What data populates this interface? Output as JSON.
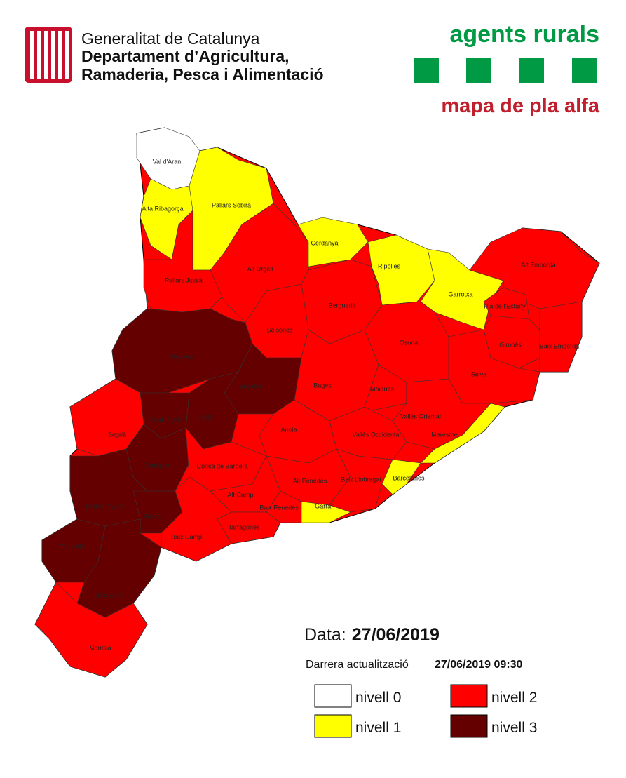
{
  "header": {
    "org_line1": "Generalitat de Catalunya",
    "org_line2": "Departament d’Agricultura,",
    "org_line3": "Ramaderia, Pesca i Alimentació",
    "brand": "agents rurals",
    "subtitle": "mapa de pla alfa"
  },
  "date": {
    "label": "Data:",
    "value": "27/06/2019"
  },
  "update": {
    "label": "Darrera actualització",
    "value": "27/06/2019 09:30"
  },
  "legend": [
    {
      "label": "nivell 0",
      "color": "#ffffff"
    },
    {
      "label": "nivell 1",
      "color": "#ffff00"
    },
    {
      "label": "nivell 2",
      "color": "#ff0000"
    },
    {
      "label": "nivell 3",
      "color": "#650000"
    }
  ],
  "regions": [
    {
      "name": "Val d'Aran",
      "level": 0
    },
    {
      "name": "Pallars Sobirà",
      "level": 1
    },
    {
      "name": "Alta Ribagorça",
      "level": 1
    },
    {
      "name": "Pallars Jussà",
      "level": 2
    },
    {
      "name": "Alt Urgell",
      "level": 2
    },
    {
      "name": "Cerdanya",
      "level": 1
    },
    {
      "name": "Ripollès",
      "level": 1
    },
    {
      "name": "Garrotxa",
      "level": 1
    },
    {
      "name": "Alt Empordà",
      "level": 2
    },
    {
      "name": "Pla de l'Estany",
      "level": 2
    },
    {
      "name": "Gironès",
      "level": 2
    },
    {
      "name": "Baix Empordà",
      "level": 2
    },
    {
      "name": "Selva",
      "level": 2
    },
    {
      "name": "Berguedà",
      "level": 2
    },
    {
      "name": "Solsonès",
      "level": 2
    },
    {
      "name": "Osona",
      "level": 2
    },
    {
      "name": "Noguera",
      "level": 3
    },
    {
      "name": "Segarra",
      "level": 3
    },
    {
      "name": "Bages",
      "level": 2
    },
    {
      "name": "Moianès",
      "level": 2
    },
    {
      "name": "Urgell",
      "level": 3
    },
    {
      "name": "Pla d'Urgell",
      "level": 3
    },
    {
      "name": "Segrià",
      "level": 2
    },
    {
      "name": "Vallès Oriental",
      "level": 2
    },
    {
      "name": "Anoia",
      "level": 2
    },
    {
      "name": "Vallès Occidental",
      "level": 2
    },
    {
      "name": "Maresme",
      "level": 1
    },
    {
      "name": "Garrigues",
      "level": 3
    },
    {
      "name": "Conca de Barberà",
      "level": 2
    },
    {
      "name": "Alt Penedès",
      "level": 2
    },
    {
      "name": "Baix Llobregat",
      "level": 2
    },
    {
      "name": "Barcelonès",
      "level": 1
    },
    {
      "name": "Alt Camp",
      "level": 2
    },
    {
      "name": "Baix Penedès",
      "level": 2
    },
    {
      "name": "Garraf",
      "level": 1
    },
    {
      "name": "Tarragonès",
      "level": 2
    },
    {
      "name": "Ribera d'Ebre",
      "level": 3
    },
    {
      "name": "Priorat",
      "level": 3
    },
    {
      "name": "Baix Camp",
      "level": 2
    },
    {
      "name": "Terra Alta",
      "level": 3
    },
    {
      "name": "Baix Ebre",
      "level": 3
    },
    {
      "name": "Montsià",
      "level": 2
    }
  ]
}
